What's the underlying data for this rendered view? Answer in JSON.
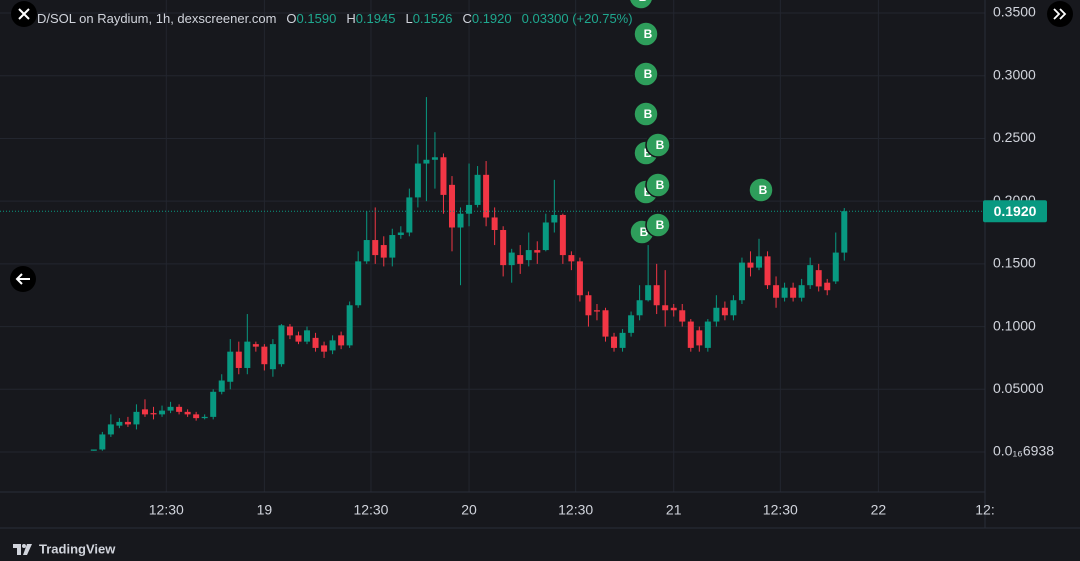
{
  "chart_data": {
    "type": "candlestick",
    "header": {
      "symbol": "D/SOL on Raydium, 1h, dexscreener.com",
      "ohlc": [
        {
          "label": "O",
          "value": "0.1590"
        },
        {
          "label": "H",
          "value": "0.1945"
        },
        {
          "label": "L",
          "value": "0.1526"
        },
        {
          "label": "C",
          "value": "0.1920"
        }
      ],
      "change": "0.03300 (+20.75%)"
    },
    "x": [
      -20,
      -19,
      -18,
      -17,
      -16,
      -15,
      -14,
      -13,
      -12,
      -11,
      -10,
      -9,
      -8,
      -7,
      -6,
      -5,
      -4,
      -3,
      -2,
      -1,
      0,
      1,
      2,
      3,
      4,
      5,
      6,
      7,
      8,
      9,
      10,
      11,
      12,
      13,
      14,
      15,
      16,
      17,
      18,
      19,
      20,
      21,
      22,
      23,
      24,
      25,
      26,
      27,
      28,
      29,
      30,
      31,
      32,
      33,
      34,
      35,
      36,
      37,
      38,
      39,
      40,
      41,
      42,
      43,
      44,
      45,
      46,
      47,
      48,
      49,
      50,
      51,
      52,
      53,
      54,
      55,
      56,
      57,
      58,
      59,
      60,
      61,
      62,
      63,
      64,
      65,
      66,
      67,
      68
    ],
    "open": [
      0.001,
      0.002,
      0.014,
      0.021,
      0.024,
      0.022,
      0.034,
      0.031,
      0.03,
      0.033,
      0.036,
      0.032,
      0.03,
      0.027,
      0.028,
      0.048,
      0.056,
      0.08,
      0.067,
      0.086,
      0.084,
      0.066,
      0.07,
      0.1,
      0.093,
      0.088,
      0.091,
      0.085,
      0.081,
      0.093,
      0.085,
      0.117,
      0.152,
      0.169,
      0.165,
      0.155,
      0.173,
      0.175,
      0.203,
      0.23,
      0.233,
      0.235,
      0.213,
      0.179,
      0.19,
      0.197,
      0.221,
      0.187,
      0.177,
      0.149,
      0.157,
      0.153,
      0.161,
      0.161,
      0.183,
      0.189,
      0.157,
      0.152,
      0.125,
      0.113,
      0.113,
      0.092,
      0.083,
      0.095,
      0.109,
      0.121,
      0.133,
      0.117,
      0.115,
      0.113,
      0.104,
      0.097,
      0.083,
      0.104,
      0.115,
      0.109,
      0.121,
      0.151,
      0.147,
      0.156,
      0.133,
      0.123,
      0.131,
      0.123,
      0.133,
      0.145,
      0.135,
      0.136,
      0.159
    ],
    "high": [
      0.002,
      0.016,
      0.03,
      0.027,
      0.028,
      0.038,
      0.042,
      0.036,
      0.037,
      0.04,
      0.038,
      0.034,
      0.032,
      0.03,
      0.05,
      0.062,
      0.09,
      0.088,
      0.11,
      0.088,
      0.086,
      0.09,
      0.102,
      0.102,
      0.096,
      0.1,
      0.095,
      0.088,
      0.093,
      0.096,
      0.12,
      0.16,
      0.192,
      0.195,
      0.172,
      0.178,
      0.18,
      0.21,
      0.245,
      0.283,
      0.255,
      0.238,
      0.22,
      0.195,
      0.23,
      0.228,
      0.232,
      0.195,
      0.18,
      0.162,
      0.165,
      0.175,
      0.168,
      0.19,
      0.217,
      0.19,
      0.16,
      0.155,
      0.128,
      0.118,
      0.115,
      0.095,
      0.098,
      0.112,
      0.133,
      0.165,
      0.15,
      0.145,
      0.118,
      0.118,
      0.106,
      0.1,
      0.106,
      0.125,
      0.12,
      0.125,
      0.155,
      0.16,
      0.17,
      0.16,
      0.14,
      0.135,
      0.135,
      0.138,
      0.155,
      0.15,
      0.138,
      0.175,
      0.1945
    ],
    "low": [
      0.001,
      0.001,
      0.012,
      0.019,
      0.02,
      0.018,
      0.028,
      0.026,
      0.028,
      0.031,
      0.03,
      0.028,
      0.025,
      0.026,
      0.026,
      0.046,
      0.05,
      0.062,
      0.062,
      0.08,
      0.065,
      0.06,
      0.068,
      0.09,
      0.086,
      0.086,
      0.08,
      0.075,
      0.078,
      0.082,
      0.083,
      0.115,
      0.15,
      0.15,
      0.148,
      0.148,
      0.17,
      0.172,
      0.195,
      0.2,
      0.21,
      0.19,
      0.16,
      0.133,
      0.18,
      0.195,
      0.18,
      0.165,
      0.14,
      0.135,
      0.142,
      0.148,
      0.15,
      0.16,
      0.175,
      0.15,
      0.145,
      0.12,
      0.1,
      0.105,
      0.088,
      0.08,
      0.08,
      0.092,
      0.105,
      0.12,
      0.11,
      0.1,
      0.108,
      0.1,
      0.08,
      0.08,
      0.08,
      0.1,
      0.105,
      0.105,
      0.118,
      0.14,
      0.145,
      0.13,
      0.115,
      0.12,
      0.12,
      0.12,
      0.13,
      0.128,
      0.125,
      0.134,
      0.1526
    ],
    "close": [
      0.002,
      0.014,
      0.022,
      0.024,
      0.022,
      0.032,
      0.03,
      0.03,
      0.033,
      0.036,
      0.032,
      0.03,
      0.027,
      0.028,
      0.048,
      0.057,
      0.08,
      0.067,
      0.088,
      0.084,
      0.07,
      0.086,
      0.101,
      0.093,
      0.088,
      0.097,
      0.083,
      0.08,
      0.089,
      0.085,
      0.117,
      0.152,
      0.169,
      0.157,
      0.155,
      0.173,
      0.175,
      0.203,
      0.23,
      0.233,
      0.235,
      0.205,
      0.179,
      0.19,
      0.197,
      0.221,
      0.187,
      0.177,
      0.149,
      0.159,
      0.15,
      0.161,
      0.159,
      0.183,
      0.189,
      0.157,
      0.152,
      0.125,
      0.109,
      0.112,
      0.092,
      0.083,
      0.095,
      0.109,
      0.121,
      0.133,
      0.117,
      0.113,
      0.113,
      0.104,
      0.083,
      0.085,
      0.104,
      0.115,
      0.109,
      0.121,
      0.151,
      0.147,
      0.156,
      0.133,
      0.123,
      0.131,
      0.123,
      0.133,
      0.149,
      0.132,
      0.129,
      0.159,
      0.192
    ],
    "up_color": "#089981",
    "down_color": "#f23645",
    "xlim": [
      -31,
      84.5
    ],
    "xticks": [
      {
        "value": -11.5,
        "label": "12:30"
      },
      {
        "value": 0,
        "label": "19"
      },
      {
        "value": 12.5,
        "label": "12:30"
      },
      {
        "value": 24,
        "label": "20"
      },
      {
        "value": 36.5,
        "label": "12:30"
      },
      {
        "value": 48,
        "label": "21"
      },
      {
        "value": 60.5,
        "label": "12:30"
      },
      {
        "value": 72,
        "label": "22"
      },
      {
        "value": 84.5,
        "label": "12:"
      }
    ],
    "ylim": [
      -0.0319,
      0.3604
    ],
    "yticks": [
      {
        "value": 0.35,
        "label": "0.3500"
      },
      {
        "value": 0.3,
        "label": "0.3000"
      },
      {
        "value": 0.25,
        "label": "0.2500"
      },
      {
        "value": 0.2,
        "label": "0.2000"
      },
      {
        "value": 0.15,
        "label": "0.1500"
      },
      {
        "value": 0.1,
        "label": "0.1000"
      },
      {
        "value": 0.05,
        "label": "0.05000"
      },
      {
        "value": 6.938e-17,
        "label": "0.0₁₆6938"
      }
    ],
    "grid": true,
    "last_price": {
      "value": 0.192,
      "label": "0.1920"
    },
    "marker_label": "B",
    "footer": "TradingView"
  }
}
